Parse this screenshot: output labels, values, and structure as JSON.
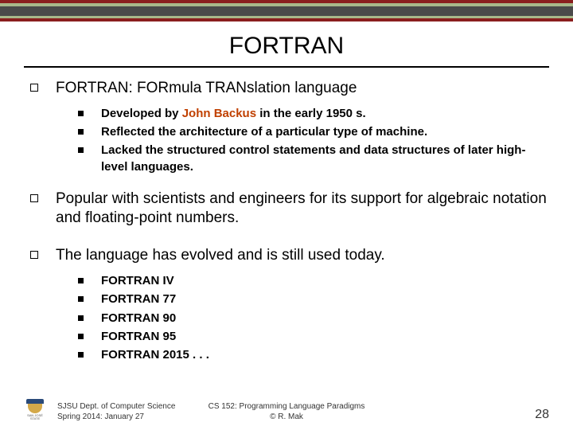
{
  "stripes": [
    {
      "h": 4,
      "c": "#8a1e1e"
    },
    {
      "h": 4,
      "c": "#a8b88a"
    },
    {
      "h": 12,
      "c": "#4a4a4a"
    },
    {
      "h": 3,
      "c": "#a8b88a"
    },
    {
      "h": 4,
      "c": "#8a1e1e"
    }
  ],
  "title": "FORTRAN",
  "points": [
    {
      "text_parts": [
        {
          "t": "FORTRAN: ",
          "hl": false
        },
        {
          "t": "FOR",
          "hl": false,
          "u": true
        },
        {
          "t": "mula ",
          "hl": false
        },
        {
          "t": "TRAN",
          "hl": false,
          "u": true
        },
        {
          "t": "slation language",
          "hl": false
        }
      ],
      "sub": [
        {
          "parts": [
            {
              "t": "Developed by "
            },
            {
              "t": "John Backus",
              "hl": true
            },
            {
              "t": " in the early 1950 s."
            }
          ]
        },
        {
          "parts": [
            {
              "t": "Reflected the architecture of a particular type of machine."
            }
          ]
        },
        {
          "parts": [
            {
              "t": "Lacked the structured control statements and data structures of later high-level languages."
            }
          ]
        }
      ]
    },
    {
      "text_parts": [
        {
          "t": "Popular with scientists and engineers for its support for algebraic notation and floating-point numbers."
        }
      ],
      "sub": []
    },
    {
      "text_parts": [
        {
          "t": "The language has evolved and is still used today."
        }
      ],
      "sub": [
        {
          "parts": [
            {
              "t": "FORTRAN IV"
            }
          ]
        },
        {
          "parts": [
            {
              "t": "FORTRAN 77"
            }
          ]
        },
        {
          "parts": [
            {
              "t": "FORTRAN 90"
            }
          ]
        },
        {
          "parts": [
            {
              "t": "FORTRAN 95"
            }
          ]
        },
        {
          "parts": [
            {
              "t": "FORTRAN 2015 . . ."
            }
          ]
        }
      ]
    }
  ],
  "footer": {
    "left_line1": "SJSU Dept. of Computer Science",
    "left_line2": "Spring 2014: January 27",
    "center_line1": "CS 152: Programming Language Paradigms",
    "center_line2": "© R. Mak",
    "page": "28",
    "logo_label": "SAN JOSÉ STATE"
  },
  "colors": {
    "highlight": "#c04000",
    "text": "#000000",
    "bg": "#ffffff"
  }
}
